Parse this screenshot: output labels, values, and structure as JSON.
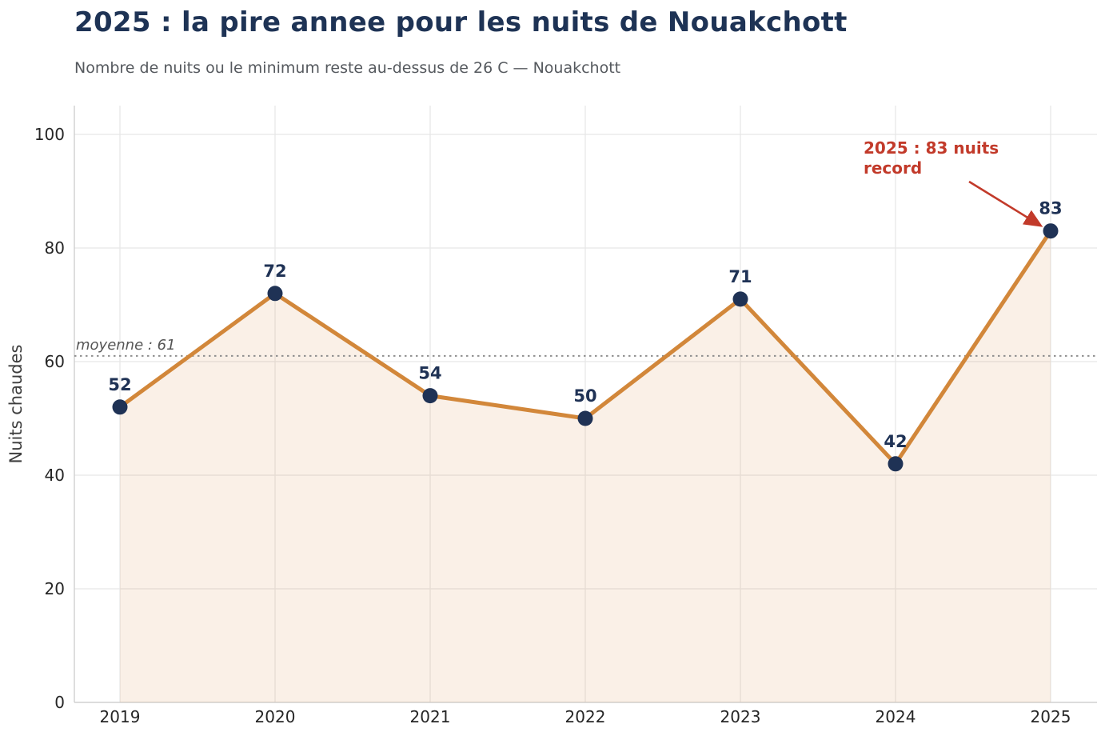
{
  "header": {
    "title": "2025 : la pire annee pour les nuits de Nouakchott",
    "subtitle": "Nombre de nuits ou le minimum reste au-dessus de 26 C — Nouakchott"
  },
  "chart_data": {
    "type": "line",
    "title": "2025 : la pire annee pour les nuits de Nouakchott",
    "subtitle": "Nombre de nuits ou le minimum reste au-dessus de 26 C — Nouakchott",
    "x": [
      2019,
      2020,
      2021,
      2022,
      2023,
      2024,
      2025
    ],
    "series": [
      {
        "name": "Nuits chaudes",
        "values": [
          52,
          72,
          54,
          50,
          71,
          42,
          83
        ]
      }
    ],
    "point_labels": [
      "52",
      "72",
      "54",
      "50",
      "71",
      "42",
      "83"
    ],
    "xlabel": "",
    "ylabel": "Nuits chaudes",
    "ylim": [
      0,
      105
    ],
    "yticks": [
      0,
      20,
      40,
      60,
      80,
      100
    ],
    "grid": true,
    "legend_position": "none",
    "area_fill": true,
    "average_line": {
      "value": 61,
      "label": "moyenne : 61"
    },
    "annotation": {
      "line1": "2025 : 83 nuits",
      "line2": "record",
      "target_year": 2025,
      "target_value": 83
    },
    "colors": {
      "line": "#d2873a",
      "marker": "#1f3255",
      "area": "rgba(210,135,58,0.12)",
      "annotation": "#c23a2a",
      "value_label": "#1f3255",
      "tick_label": "#262626",
      "axis_label": "#3d3d3d",
      "average": "#8f8f8f",
      "average_label": "#555555",
      "grid": "#e7e7e7",
      "spine": "#cccccc"
    }
  }
}
